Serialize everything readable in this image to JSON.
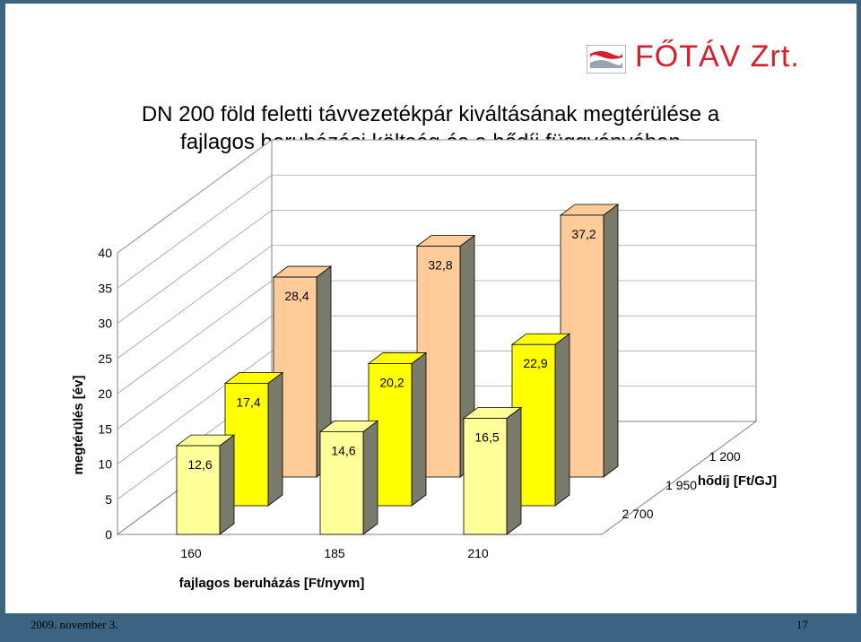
{
  "logo": {
    "text": "FŐTÁV Zrt."
  },
  "title": {
    "line1": "DN 200 föld feletti távvezetékpár kiváltásának megtérülése a",
    "line2": "fajlagos beruházási költség és a hődíj függvényében"
  },
  "colors": {
    "front_row": "#ffff99",
    "middle_row": "#ffff00",
    "back_row": "#ffcc99",
    "background": "#3d6383",
    "logo": "#d81e2a"
  },
  "chart_data": {
    "type": "bar3d",
    "ylabel": "megtérülés [év]",
    "xlabel": "fajlagos beruházás [Ft/nyvm]",
    "zlabel": "hődíj [Ft/GJ]",
    "ylim": [
      0,
      40
    ],
    "yticks": [
      "0",
      "5",
      "10",
      "15",
      "20",
      "25",
      "30",
      "35",
      "40"
    ],
    "categories": [
      "160",
      "185",
      "210"
    ],
    "series": [
      {
        "name": "2 700",
        "values": [
          12.6,
          14.6,
          16.5
        ],
        "labels": [
          "12,6",
          "14,6",
          "16,5"
        ]
      },
      {
        "name": "1 950",
        "values": [
          17.4,
          20.2,
          22.9
        ],
        "labels": [
          "17,4",
          "20,2",
          "22,9"
        ]
      },
      {
        "name": "1 200",
        "values": [
          28.4,
          32.8,
          37.2
        ],
        "labels": [
          "28,4",
          "32,8",
          "37,2"
        ]
      }
    ]
  },
  "footer": {
    "date": "2009. november 3.",
    "page": "17"
  }
}
